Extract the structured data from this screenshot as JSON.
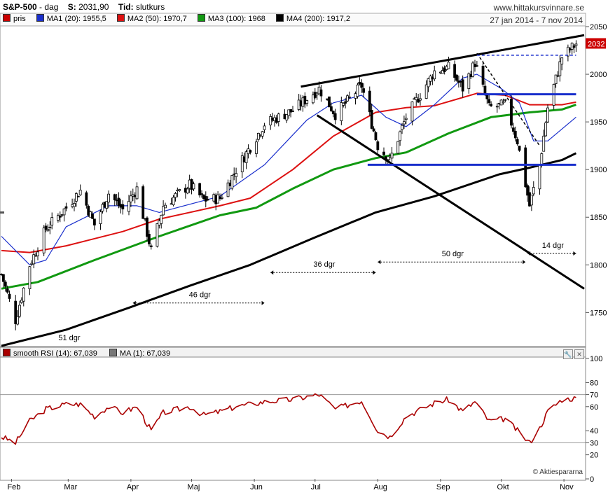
{
  "header": {
    "symbol": "S&P-500",
    "sep": " - ",
    "period": "dag",
    "s_label": "S:",
    "s_value": "2031,90",
    "tid_label": "Tid:",
    "tid_value": "slutkurs",
    "site": "www.hittakursvinnare.se",
    "date_range": "27 jan 2014 - 7 nov 2014"
  },
  "legend": [
    {
      "name": "pris",
      "color": "#cc0000"
    },
    {
      "name": "MA1 (20): 1955,5",
      "color": "#1a2fcc"
    },
    {
      "name": "MA2 (50): 1970,7",
      "color": "#dd1111"
    },
    {
      "name": "MA3 (100): 1968",
      "color": "#119911"
    },
    {
      "name": "MA4 (200): 1917,2",
      "color": "#000000"
    }
  ],
  "rsi_legend": [
    {
      "name": "smooth RSI (14): 67,039",
      "color": "#aa0000"
    },
    {
      "name": "MA (1): 67,039",
      "color": "#777777"
    }
  ],
  "copyright": "© Aktiespararna",
  "price_badge": "2032",
  "icons": {
    "tool_a": "wrench-icon",
    "tool_b": "close-icon"
  },
  "chart_data": [
    {
      "type": "candlestick",
      "ylim": [
        1715,
        2050
      ],
      "yticks": [
        1750,
        1800,
        1850,
        1900,
        1950,
        2000,
        2050
      ],
      "months": [
        "Feb",
        "Mar",
        "Apr",
        "Maj",
        "Jun",
        "Jul",
        "Aug",
        "Sep",
        "Okt",
        "Nov"
      ],
      "price_anchors": [
        [
          "2014-01-27",
          1790
        ],
        [
          "2014-02-03",
          1742
        ],
        [
          "2014-02-10",
          1800
        ],
        [
          "2014-02-18",
          1838
        ],
        [
          "2014-02-28",
          1860
        ],
        [
          "2014-03-07",
          1878
        ],
        [
          "2014-03-14",
          1842
        ],
        [
          "2014-03-21",
          1875
        ],
        [
          "2014-03-28",
          1858
        ],
        [
          "2014-04-04",
          1880
        ],
        [
          "2014-04-11",
          1815
        ],
        [
          "2014-04-17",
          1862
        ],
        [
          "2014-04-30",
          1884
        ],
        [
          "2014-05-07",
          1868
        ],
        [
          "2014-05-15",
          1870
        ],
        [
          "2014-05-23",
          1900
        ],
        [
          "2014-06-06",
          1948
        ],
        [
          "2014-06-20",
          1962
        ],
        [
          "2014-07-03",
          1985
        ],
        [
          "2014-07-11",
          1958
        ],
        [
          "2014-07-24",
          1988
        ],
        [
          "2014-08-01",
          1925
        ],
        [
          "2014-08-07",
          1910
        ],
        [
          "2014-08-15",
          1955
        ],
        [
          "2014-08-29",
          2003
        ],
        [
          "2014-09-05",
          2007
        ],
        [
          "2014-09-12",
          1985
        ],
        [
          "2014-09-18",
          2012
        ],
        [
          "2014-09-25",
          1965
        ],
        [
          "2014-10-03",
          1968
        ],
        [
          "2014-10-09",
          1930
        ],
        [
          "2014-10-15",
          1862
        ],
        [
          "2014-10-20",
          1905
        ],
        [
          "2014-10-24",
          1965
        ],
        [
          "2014-10-31",
          2018
        ],
        [
          "2014-11-07",
          2032
        ]
      ],
      "ma1_20": [
        [
          "2014-01-27",
          1830
        ],
        [
          "2014-02-10",
          1800
        ],
        [
          "2014-02-18",
          1805
        ],
        [
          "2014-02-28",
          1840
        ],
        [
          "2014-03-21",
          1862
        ],
        [
          "2014-04-04",
          1862
        ],
        [
          "2014-04-15",
          1855
        ],
        [
          "2014-05-15",
          1872
        ],
        [
          "2014-06-06",
          1905
        ],
        [
          "2014-06-27",
          1952
        ],
        [
          "2014-07-10",
          1970
        ],
        [
          "2014-07-24",
          1978
        ],
        [
          "2014-08-05",
          1955
        ],
        [
          "2014-08-15",
          1945
        ],
        [
          "2014-08-29",
          1968
        ],
        [
          "2014-09-12",
          1996
        ],
        [
          "2014-09-19",
          2000
        ],
        [
          "2014-10-01",
          1985
        ],
        [
          "2014-10-10",
          1970
        ],
        [
          "2014-10-17",
          1930
        ],
        [
          "2014-10-24",
          1930
        ],
        [
          "2014-11-07",
          1955
        ]
      ],
      "ma2_50": [
        [
          "2014-01-27",
          1815
        ],
        [
          "2014-02-10",
          1813
        ],
        [
          "2014-02-28",
          1820
        ],
        [
          "2014-03-28",
          1835
        ],
        [
          "2014-04-15",
          1848
        ],
        [
          "2014-05-15",
          1862
        ],
        [
          "2014-05-30",
          1870
        ],
        [
          "2014-06-20",
          1900
        ],
        [
          "2014-07-10",
          1935
        ],
        [
          "2014-07-31",
          1960
        ],
        [
          "2014-08-15",
          1965
        ],
        [
          "2014-08-29",
          1967
        ],
        [
          "2014-09-19",
          1980
        ],
        [
          "2014-10-03",
          1978
        ],
        [
          "2014-10-15",
          1968
        ],
        [
          "2014-10-31",
          1968
        ],
        [
          "2014-11-07",
          1970.7
        ]
      ],
      "ma3_100": [
        [
          "2014-01-27",
          1775
        ],
        [
          "2014-02-14",
          1782
        ],
        [
          "2014-03-14",
          1805
        ],
        [
          "2014-04-15",
          1830
        ],
        [
          "2014-05-15",
          1852
        ],
        [
          "2014-06-02",
          1860
        ],
        [
          "2014-06-20",
          1880
        ],
        [
          "2014-07-10",
          1900
        ],
        [
          "2014-07-31",
          1912
        ],
        [
          "2014-08-15",
          1918
        ],
        [
          "2014-09-05",
          1938
        ],
        [
          "2014-09-26",
          1955
        ],
        [
          "2014-10-15",
          1960
        ],
        [
          "2014-10-31",
          1963
        ],
        [
          "2014-11-07",
          1968
        ]
      ],
      "ma4_200": [
        [
          "2014-01-27",
          1715
        ],
        [
          "2014-02-28",
          1732
        ],
        [
          "2014-03-31",
          1755
        ],
        [
          "2014-04-30",
          1778
        ],
        [
          "2014-05-30",
          1800
        ],
        [
          "2014-06-30",
          1828
        ],
        [
          "2014-07-31",
          1855
        ],
        [
          "2014-08-29",
          1872
        ],
        [
          "2014-09-30",
          1895
        ],
        [
          "2014-10-15",
          1902
        ],
        [
          "2014-10-31",
          1910
        ],
        [
          "2014-11-07",
          1917.2
        ]
      ],
      "trendlines": [
        {
          "style": "solid",
          "color": "#000000",
          "points": [
            [
              "2014-06-24",
              1987
            ],
            [
              "2014-11-11",
              2041
            ]
          ]
        },
        {
          "style": "solid",
          "color": "#000000",
          "points": [
            [
              "2014-07-02",
              1957
            ],
            [
              "2014-11-11",
              1775
            ]
          ]
        },
        {
          "style": "dashed",
          "color": "#000000",
          "points": [
            [
              "2014-09-19",
              2022
            ],
            [
              "2014-10-20",
              1925
            ]
          ]
        },
        {
          "style": "dashed",
          "color": "#1a2fcc",
          "points": [
            [
              "2014-09-19",
              2020
            ],
            [
              "2014-11-07",
              2020
            ]
          ]
        },
        {
          "style": "solid",
          "color": "#1a2fcc",
          "points": [
            [
              "2014-09-19",
              1979
            ],
            [
              "2014-11-07",
              1979
            ]
          ]
        },
        {
          "style": "solid",
          "color": "#1a2fcc",
          "points": [
            [
              "2014-07-27",
              1905
            ],
            [
              "2014-11-07",
              1905
            ]
          ]
        }
      ],
      "annotations": [
        {
          "label": "46 dgr",
          "from": "2014-04-02",
          "to": "2014-06-06",
          "y": 1760
        },
        {
          "label": "36 dgr",
          "from": "2014-06-09",
          "to": "2014-07-31",
          "y": 1792
        },
        {
          "label": "50 dgr",
          "from": "2014-08-01",
          "to": "2014-10-13",
          "y": 1803
        },
        {
          "label": "14 dgr",
          "from": "2014-10-14",
          "to": "2014-11-07",
          "y": 1812
        },
        {
          "label": "51 dgr",
          "at": "2014-03-01",
          "y": 1718
        }
      ]
    },
    {
      "type": "line",
      "title": "smooth RSI (14)",
      "ylim": [
        0,
        100
      ],
      "yticks": [
        0,
        20,
        30,
        40,
        60,
        70,
        80,
        100
      ],
      "hlines": [
        30,
        70
      ],
      "rsi": [
        [
          "2014-01-27",
          35
        ],
        [
          "2014-02-03",
          30
        ],
        [
          "2014-02-10",
          48
        ],
        [
          "2014-02-18",
          58
        ],
        [
          "2014-02-28",
          62
        ],
        [
          "2014-03-07",
          62
        ],
        [
          "2014-03-14",
          52
        ],
        [
          "2014-03-21",
          60
        ],
        [
          "2014-03-28",
          55
        ],
        [
          "2014-04-04",
          60
        ],
        [
          "2014-04-11",
          40
        ],
        [
          "2014-04-17",
          55
        ],
        [
          "2014-04-30",
          60
        ],
        [
          "2014-05-07",
          53
        ],
        [
          "2014-05-15",
          56
        ],
        [
          "2014-05-23",
          60
        ],
        [
          "2014-06-06",
          64
        ],
        [
          "2014-06-20",
          66
        ],
        [
          "2014-07-03",
          70
        ],
        [
          "2014-07-11",
          58
        ],
        [
          "2014-07-24",
          65
        ],
        [
          "2014-08-01",
          40
        ],
        [
          "2014-08-07",
          35
        ],
        [
          "2014-08-15",
          52
        ],
        [
          "2014-08-29",
          63
        ],
        [
          "2014-09-05",
          66
        ],
        [
          "2014-09-12",
          56
        ],
        [
          "2014-09-18",
          64
        ],
        [
          "2014-09-25",
          48
        ],
        [
          "2014-10-03",
          50
        ],
        [
          "2014-10-09",
          40
        ],
        [
          "2014-10-15",
          30
        ],
        [
          "2014-10-20",
          42
        ],
        [
          "2014-10-24",
          56
        ],
        [
          "2014-10-31",
          66
        ],
        [
          "2014-11-07",
          67.039
        ]
      ]
    }
  ]
}
